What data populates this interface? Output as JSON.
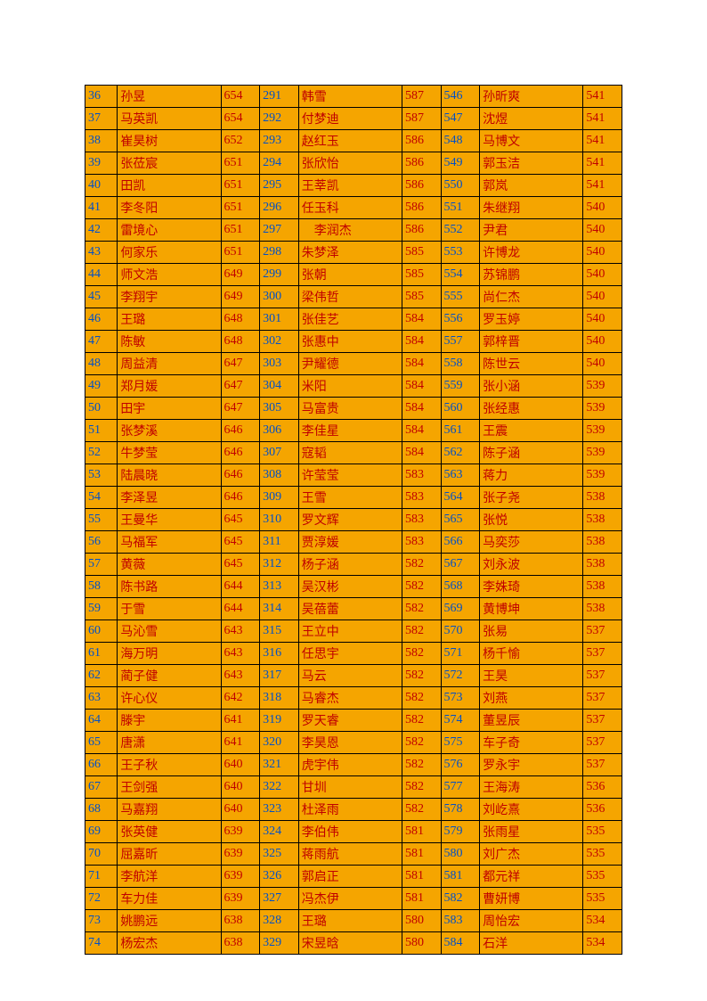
{
  "colors": {
    "cell_bg": "#f5a500",
    "border": "#000000",
    "index_text": "#0050c8",
    "data_text": "#c00000",
    "page_bg": "#ffffff"
  },
  "columns": [
    "idx",
    "name",
    "score",
    "idx",
    "name",
    "score",
    "idx",
    "name",
    "score"
  ],
  "rows": [
    [
      "36",
      "孙昱",
      "654",
      "291",
      "韩雪",
      "587",
      "546",
      "孙昕爽",
      "541"
    ],
    [
      "37",
      "马英凯",
      "654",
      "292",
      "付梦迪",
      "587",
      "547",
      "沈煜",
      "541"
    ],
    [
      "38",
      "崔昊树",
      "652",
      "293",
      "赵红玉",
      "586",
      "548",
      "马博文",
      "541"
    ],
    [
      "39",
      "张莅宸",
      "651",
      "294",
      "张欣怡",
      "586",
      "549",
      "郭玉洁",
      "541"
    ],
    [
      "40",
      "田凯",
      "651",
      "295",
      "王莘凯",
      "586",
      "550",
      "郭岚",
      "541"
    ],
    [
      "41",
      "李冬阳",
      "651",
      "296",
      "任玉科",
      "586",
      "551",
      "朱继翔",
      "540"
    ],
    [
      "42",
      "雷境心",
      "651",
      "297",
      "　李润杰",
      "586",
      "552",
      "尹君",
      "540"
    ],
    [
      "43",
      "何家乐",
      "651",
      "298",
      "朱梦泽",
      "585",
      "553",
      "许博龙",
      "540"
    ],
    [
      "44",
      "师文浩",
      "649",
      "299",
      "张朝",
      "585",
      "554",
      "苏锦鹏",
      "540"
    ],
    [
      "45",
      "李翔宇",
      "649",
      "300",
      "梁伟哲",
      "585",
      "555",
      "尚仁杰",
      "540"
    ],
    [
      "46",
      "王璐",
      "648",
      "301",
      "张佳艺",
      "584",
      "556",
      "罗玉婷",
      "540"
    ],
    [
      "47",
      "陈敏",
      "648",
      "302",
      "张惠中",
      "584",
      "557",
      "郭梓晋",
      "540"
    ],
    [
      "48",
      "周益清",
      "647",
      "303",
      "尹耀德",
      "584",
      "558",
      "陈世云",
      "540"
    ],
    [
      "49",
      "郑月媛",
      "647",
      "304",
      "米阳",
      "584",
      "559",
      "张小涵",
      "539"
    ],
    [
      "50",
      "田宇",
      "647",
      "305",
      "马富贵",
      "584",
      "560",
      "张经惠",
      "539"
    ],
    [
      "51",
      "张梦溪",
      "646",
      "306",
      "李佳星",
      "584",
      "561",
      "王震",
      "539"
    ],
    [
      "52",
      "牛梦莹",
      "646",
      "307",
      "寇韬",
      "584",
      "562",
      "陈子涵",
      "539"
    ],
    [
      "53",
      "陆晨晓",
      "646",
      "308",
      "许莹莹",
      "583",
      "563",
      "蒋力",
      "539"
    ],
    [
      "54",
      "李泽昱",
      "646",
      "309",
      "王雪",
      "583",
      "564",
      "张子尧",
      "538"
    ],
    [
      "55",
      "王曼华",
      "645",
      "310",
      "罗文辉",
      "583",
      "565",
      "张悦",
      "538"
    ],
    [
      "56",
      "马福军",
      "645",
      "311",
      "贾淳媛",
      "583",
      "566",
      "马奕莎",
      "538"
    ],
    [
      "57",
      "黄薇",
      "645",
      "312",
      "杨子涵",
      "582",
      "567",
      "刘永波",
      "538"
    ],
    [
      "58",
      "陈书路",
      "644",
      "313",
      "吴汉彬",
      "582",
      "568",
      "李姝琦",
      "538"
    ],
    [
      "59",
      "于雪",
      "644",
      "314",
      "吴蓓蕾",
      "582",
      "569",
      "黄博坤",
      "538"
    ],
    [
      "60",
      "马沁雪",
      "643",
      "315",
      "王立中",
      "582",
      "570",
      "张易",
      "537"
    ],
    [
      "61",
      "海万明",
      "643",
      "316",
      "任思宇",
      "582",
      "571",
      "杨千愉",
      "537"
    ],
    [
      "62",
      "蔺子健",
      "643",
      "317",
      "马云",
      "582",
      "572",
      "王昊",
      "537"
    ],
    [
      "63",
      "许心仪",
      "642",
      "318",
      "马睿杰",
      "582",
      "573",
      "刘燕",
      "537"
    ],
    [
      "64",
      "滕宇",
      "641",
      "319",
      "罗天睿",
      "582",
      "574",
      "董昱辰",
      "537"
    ],
    [
      "65",
      "唐潇",
      "641",
      "320",
      "李昊恩",
      "582",
      "575",
      "车子奇",
      "537"
    ],
    [
      "66",
      "王子秋",
      "640",
      "321",
      "虎宇伟",
      "582",
      "576",
      "罗永宇",
      "537"
    ],
    [
      "67",
      "王剑强",
      "640",
      "322",
      "甘圳",
      "582",
      "577",
      "王海涛",
      "536"
    ],
    [
      "68",
      "马嘉翔",
      "640",
      "323",
      "杜泽雨",
      "582",
      "578",
      "刘屹熹",
      "536"
    ],
    [
      "69",
      "张英健",
      "639",
      "324",
      "李伯伟",
      "581",
      "579",
      "张雨星",
      "535"
    ],
    [
      "70",
      "屈嘉昕",
      "639",
      "325",
      "蒋雨航",
      "581",
      "580",
      "刘广杰",
      "535"
    ],
    [
      "71",
      "李航洋",
      "639",
      "326",
      "郭启正",
      "581",
      "581",
      "都元祥",
      "535"
    ],
    [
      "72",
      "车力佳",
      "639",
      "327",
      "冯杰伊",
      "581",
      "582",
      "曹妍博",
      "535"
    ],
    [
      "73",
      "姚鹏远",
      "638",
      "328",
      "王璐",
      "580",
      "583",
      "周怡宏",
      "534"
    ],
    [
      "74",
      "杨宏杰",
      "638",
      "329",
      "宋昱晗",
      "580",
      "584",
      "石洋",
      "534"
    ]
  ]
}
